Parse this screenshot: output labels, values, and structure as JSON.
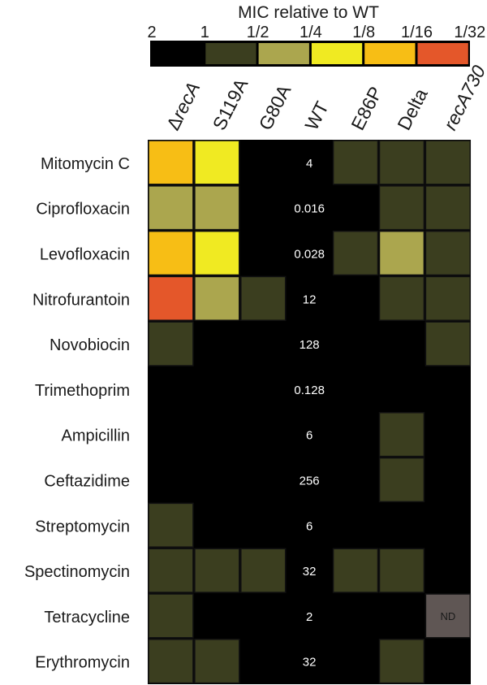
{
  "chart_data": {
    "type": "heatmap",
    "legend": {
      "title": "MIC relative to WT",
      "tick_labels": [
        "2",
        "1",
        "1/2",
        "1/4",
        "1/8",
        "1/16",
        "1/32"
      ],
      "bins": [
        {
          "level": "2 to 1",
          "color": "#000000"
        },
        {
          "level": "1 to 1/2",
          "color": "#3b3e1f"
        },
        {
          "level": "1/2 to 1/4",
          "color": "#aba64e"
        },
        {
          "level": "1/4 to 1/8",
          "color": "#f0ea22"
        },
        {
          "level": "1/8 to 1/16",
          "color": "#f7be15"
        },
        {
          "level": "1/16 to 1/32",
          "color": "#e4572a"
        }
      ],
      "placement": "top-right"
    },
    "columns": [
      {
        "prefix": "Δ",
        "label": "recA",
        "italic": true
      },
      {
        "prefix": "",
        "label": "S119A",
        "italic": false
      },
      {
        "prefix": "",
        "label": "G80A",
        "italic": false
      },
      {
        "prefix": "",
        "label": "WT",
        "italic": false
      },
      {
        "prefix": "",
        "label": "E86P",
        "italic": false
      },
      {
        "prefix": "",
        "label": "Delta",
        "italic": false
      },
      {
        "prefix": "",
        "label": "recA730",
        "italic": true
      }
    ],
    "rows": [
      "Mitomycin C",
      "Ciprofloxacin",
      "Levofloxacin",
      "Nitrofurantoin",
      "Novobiocin",
      "Trimethoprim",
      "Ampicillin",
      "Ceftazidime",
      "Streptomycin",
      "Spectinomycin",
      "Tetracycline",
      "Erythromycin"
    ],
    "wt_mic_values": [
      "4",
      "0.016",
      "0.028",
      "12",
      "128",
      "0.128",
      "6",
      "256",
      "6",
      "32",
      "2",
      "32"
    ],
    "levels": [
      [
        4,
        3,
        0,
        null,
        1,
        1,
        1
      ],
      [
        2,
        2,
        0,
        null,
        0,
        1,
        1
      ],
      [
        4,
        3,
        0,
        null,
        1,
        2,
        1
      ],
      [
        5,
        2,
        1,
        null,
        0,
        1,
        1
      ],
      [
        1,
        0,
        0,
        null,
        0,
        0,
        1
      ],
      [
        0,
        0,
        0,
        null,
        0,
        0,
        0
      ],
      [
        0,
        0,
        0,
        null,
        0,
        1,
        0
      ],
      [
        0,
        0,
        0,
        null,
        0,
        1,
        0
      ],
      [
        1,
        0,
        0,
        null,
        0,
        0,
        0
      ],
      [
        1,
        1,
        1,
        null,
        1,
        1,
        0
      ],
      [
        1,
        0,
        0,
        null,
        0,
        0,
        "ND"
      ],
      [
        1,
        1,
        0,
        null,
        0,
        1,
        0
      ]
    ],
    "nd_label": "ND",
    "nd_color": "#5f5654",
    "background_color": "#000000",
    "cell_border_color": "#111111"
  }
}
